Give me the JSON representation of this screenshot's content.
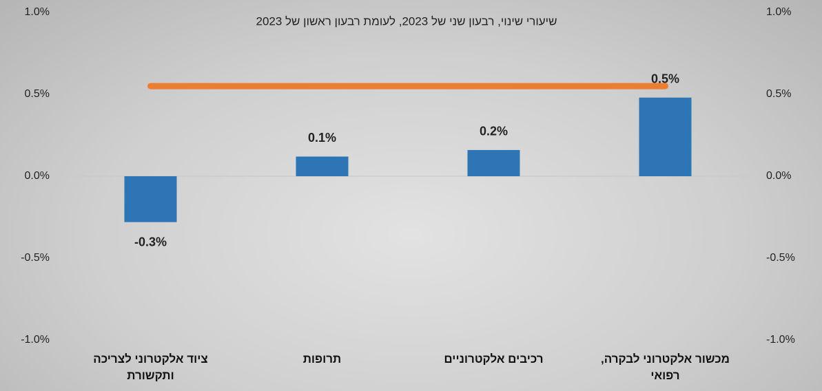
{
  "chart_data": {
    "type": "bar",
    "title": "שיעורי שינוי, רבעון שני של 2023, לעומת רבעון ראשון של 2023",
    "categories": [
      "ציוד אלקטרוני לצריכה ותקשורת",
      "תרופות",
      "רכיבים אלקטרוניים",
      "מכשור אלקטרוני לבקרה, רפואי"
    ],
    "series": [
      {
        "type": "bar",
        "color": "#2e75b6",
        "values": [
          -0.28,
          0.12,
          0.16,
          0.48
        ],
        "value_labels": [
          "-0.3%",
          "0.1%",
          "0.2%",
          "0.5%"
        ]
      },
      {
        "type": "line",
        "color": "#ed7d31",
        "axis": "y2",
        "values": [
          0.55,
          0.55,
          0.55,
          0.55
        ]
      }
    ],
    "ylim": [
      -1,
      1
    ],
    "yticks": [
      {
        "value": -1,
        "label": "-1.0%"
      },
      {
        "value": -0.5,
        "label": "-0.5%"
      },
      {
        "value": 0,
        "label": "0.0%"
      },
      {
        "value": 0.5,
        "label": "0.5%"
      },
      {
        "value": 1,
        "label": "1.0%"
      }
    ],
    "y2lim": [
      -1,
      1
    ],
    "y2ticks": [
      {
        "value": -1,
        "label": "-1.0%"
      },
      {
        "value": -0.5,
        "label": "-0.5%"
      },
      {
        "value": 0,
        "label": "0.0%"
      },
      {
        "value": 0.5,
        "label": "0.5%"
      },
      {
        "value": 1,
        "label": "1.0%"
      }
    ],
    "grid": false
  }
}
